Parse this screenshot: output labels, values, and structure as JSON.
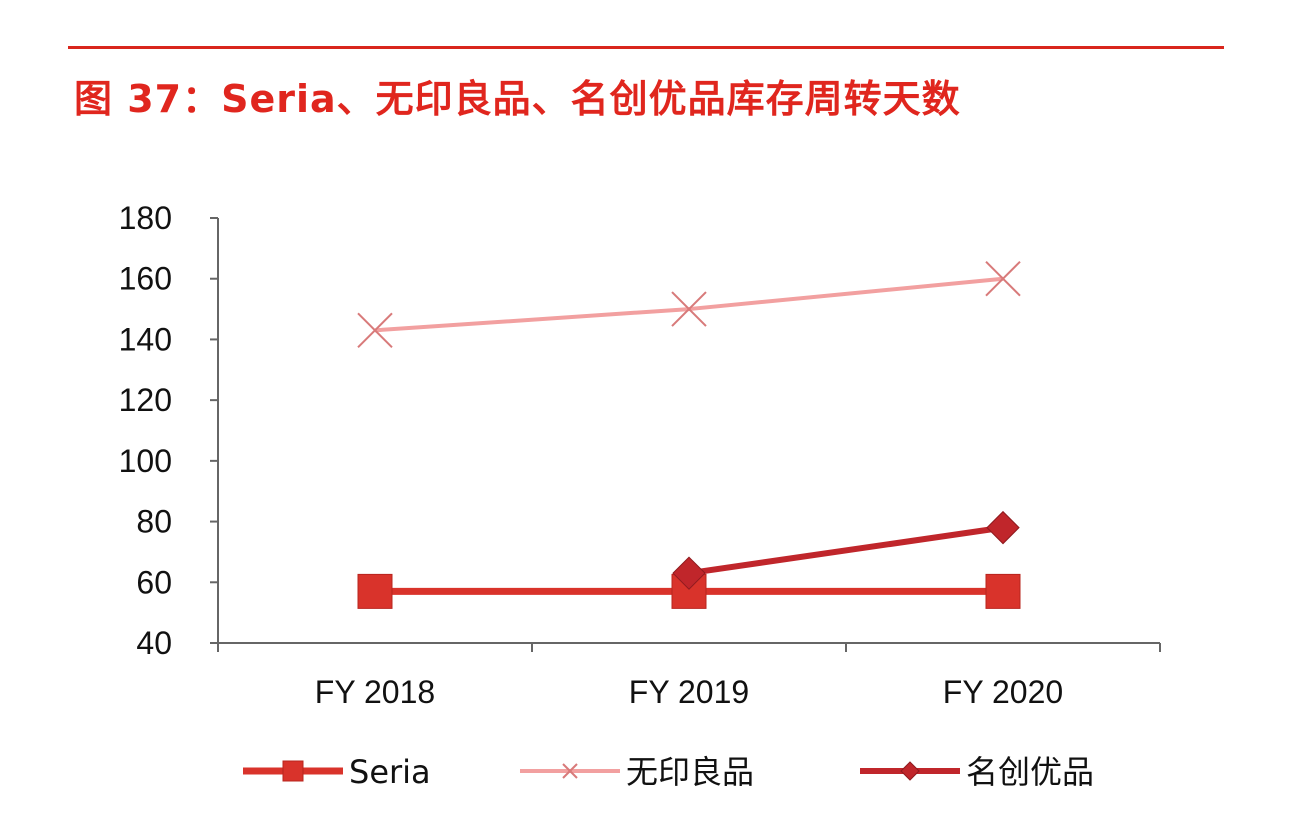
{
  "figure": {
    "title": "图 37：Seria、无印良品、名创优品库存周转天数"
  },
  "colors": {
    "accent": "#d9261c",
    "seria": "#d9332b",
    "muji": "#f2a0a0",
    "miniso": "#c0262b",
    "axis": "#666666"
  },
  "chart_data": {
    "type": "line",
    "categories": [
      "FY 2018",
      "FY 2019",
      "FY 2020"
    ],
    "ylim": [
      40,
      180
    ],
    "yticks": [
      40,
      60,
      80,
      100,
      120,
      140,
      160,
      180
    ],
    "grid": false,
    "legend": "bottom",
    "series": [
      {
        "name": "Seria",
        "marker": "square",
        "color": "#d9332b",
        "values": [
          57,
          57,
          57
        ]
      },
      {
        "name": "无印良品",
        "marker": "x",
        "color": "#f2a0a0",
        "values": [
          143,
          150,
          160
        ]
      },
      {
        "name": "名创优品",
        "marker": "diamond",
        "color": "#c0262b",
        "values": [
          null,
          63,
          78
        ]
      }
    ]
  }
}
